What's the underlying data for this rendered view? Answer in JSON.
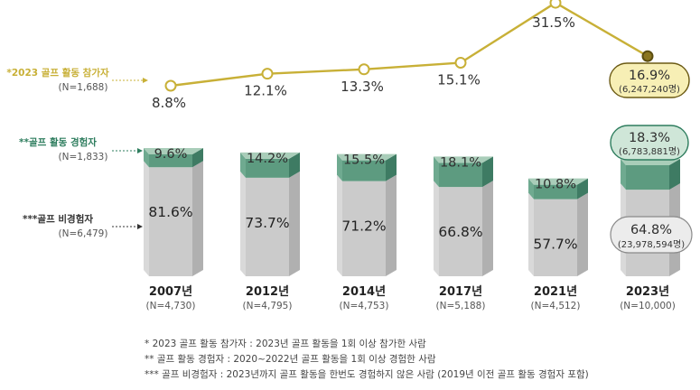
{
  "chart_data": {
    "type": "bar",
    "categories": [
      "2007년",
      "2012년",
      "2014년",
      "2017년",
      "2021년",
      "2023년"
    ],
    "sample_sizes": [
      "(N=4,730)",
      "(N=4,795)",
      "(N=4,753)",
      "(N=5,188)",
      "(N=4,512)",
      "(N=10,000)"
    ],
    "line_series": {
      "label": "*2023 골프 활동 참가자",
      "n_label": "(N=1,688)",
      "values": [
        8.8,
        12.1,
        13.3,
        15.1,
        31.5,
        16.9
      ],
      "value_labels": [
        "8.8%",
        "12.1%",
        "13.3%",
        "15.1%",
        "31.5%",
        "16.9%"
      ],
      "last_count": "(6,247,240명)",
      "color": "#c8b037",
      "ylim": [
        0,
        35
      ]
    },
    "series": [
      {
        "name": "**골프 활동 경험자",
        "n_label": "(N=1,833)",
        "values": [
          9.6,
          14.2,
          15.5,
          18.1,
          10.8,
          18.3
        ],
        "value_labels": [
          "9.6%",
          "14.2%",
          "15.5%",
          "18.1%",
          "10.8%",
          "18.3%"
        ],
        "last_count": "(6,783,881명)",
        "color": "#5a9a7e"
      },
      {
        "name": "***골프 비경험자",
        "n_label": "(N=6,479)",
        "values": [
          81.6,
          73.7,
          71.2,
          66.8,
          57.7,
          64.8
        ],
        "value_labels": [
          "81.6%",
          "73.7%",
          "71.2%",
          "66.8%",
          "57.7%",
          "64.8%"
        ],
        "last_count": "(23,978,594명)",
        "color": "#c8c8c8"
      }
    ],
    "footnotes": [
      "* 2023 골프 활동 참가자 : 2023년 골프 활동을 1회 이상 참가한 사람",
      "** 골프 활동 경험자 : 2020~2022년 골프 활동을 1회 이상 경험한 사람",
      "*** 골프 비경험자 : 2023년까지 골프 활동을 한번도 경험하지 않은 사람 (2019년 이전 골프 활동 경험자 포함)"
    ]
  }
}
